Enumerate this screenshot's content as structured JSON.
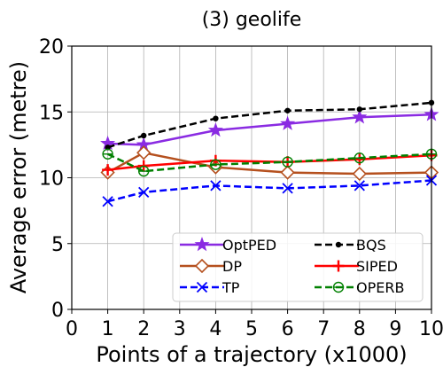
{
  "chart_data": {
    "type": "line",
    "title": "(3) geolife",
    "xlabel": "Points of a trajectory (x1000)",
    "ylabel": "Average error (metre)",
    "xlim": [
      0,
      10
    ],
    "ylim": [
      0,
      20
    ],
    "xticks": [
      "0",
      "1",
      "2",
      "3",
      "4",
      "5",
      "6",
      "7",
      "8",
      "9",
      "10"
    ],
    "yticks": [
      "0",
      "5",
      "10",
      "15",
      "20"
    ],
    "grid": true,
    "legend_position": "lower-right",
    "x": [
      1,
      2,
      4,
      6,
      8,
      10
    ],
    "series": [
      {
        "name": "OptPED",
        "color": "#8a2be2",
        "marker": "star",
        "dash": "solid",
        "values": [
          12.6,
          12.5,
          13.6,
          14.1,
          14.6,
          14.8
        ]
      },
      {
        "name": "DP",
        "color": "#b5501e",
        "marker": "diamond",
        "dash": "solid",
        "values": [
          10.4,
          11.9,
          10.8,
          10.4,
          10.3,
          10.4
        ]
      },
      {
        "name": "TP",
        "color": "#0000ff",
        "marker": "x",
        "dash": "dashed",
        "values": [
          8.2,
          8.9,
          9.4,
          9.2,
          9.4,
          9.8
        ]
      },
      {
        "name": "BQS",
        "color": "#000000",
        "marker": "dot",
        "dash": "dashed",
        "values": [
          12.3,
          13.2,
          14.5,
          15.1,
          15.2,
          15.7
        ]
      },
      {
        "name": "SIPED",
        "color": "#ff0000",
        "marker": "plus",
        "dash": "solid",
        "values": [
          10.6,
          10.9,
          11.3,
          11.2,
          11.4,
          11.7
        ]
      },
      {
        "name": "OPERB",
        "color": "#008000",
        "marker": "circle-bar",
        "dash": "dashed",
        "values": [
          11.8,
          10.5,
          11.0,
          11.2,
          11.5,
          11.8
        ]
      }
    ]
  }
}
